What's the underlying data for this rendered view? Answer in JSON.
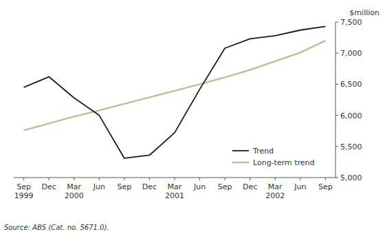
{
  "chart_data": {
    "type": "line",
    "ylabel": "$million",
    "source": "Source: ABS (Cat. no. 5671.0).",
    "categories": [
      "Sep 1999",
      "Dec",
      "Mar 2000",
      "Jun",
      "Sep",
      "Dec",
      "Mar 2001",
      "Jun",
      "Sep",
      "Dec",
      "Mar 2002",
      "Jun",
      "Sep"
    ],
    "series": [
      {
        "name": "Trend",
        "color": "#1a1a1a",
        "values": [
          6450,
          6620,
          6280,
          6000,
          5310,
          5360,
          5720,
          6420,
          7080,
          7230,
          7280,
          7370,
          7430
        ]
      },
      {
        "name": "Long-term trend",
        "color": "#c8b898",
        "values": [
          5760,
          5870,
          5980,
          6080,
          6185,
          6290,
          6395,
          6500,
          6610,
          6730,
          6870,
          7010,
          7200
        ]
      }
    ],
    "ylim": [
      5000,
      7500
    ],
    "yticks": [
      {
        "value": 5000,
        "label": "5,000"
      },
      {
        "value": 5500,
        "label": "5,500"
      },
      {
        "value": 6000,
        "label": "6,000"
      },
      {
        "value": 6500,
        "label": "6,500"
      },
      {
        "value": 7000,
        "label": "7,000"
      },
      {
        "value": 7500,
        "label": "7,500"
      }
    ],
    "grid": false,
    "legend": "lower right"
  }
}
